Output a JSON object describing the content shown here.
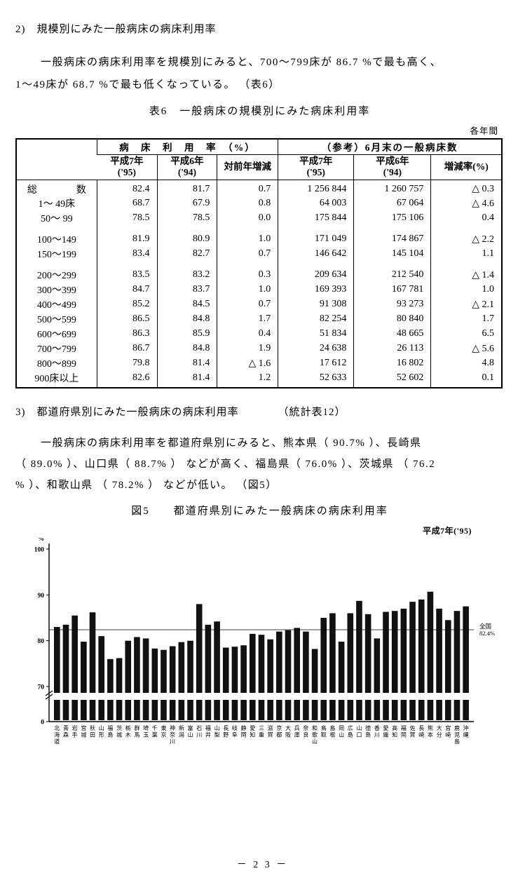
{
  "page": {
    "section2_no": "2)",
    "section2_title": "規模別にみた一般病床の病床利用率",
    "para2_line1": "一般病床の病床利用率を規模別にみると、700～799床が 86.7 %で最も高く、",
    "para2_line2": "1～49床が 68.7 %で最も低くなっている。 （表6）",
    "table_title": "表6　一般病床の規模別にみた病床利用率",
    "table_period_note": "各年間",
    "section3_no": "3)",
    "section3_title": "都道府県別にみた一般病床の病床利用率",
    "section3_ref": "（統計表12）",
    "para3_line1": "一般病床の病床利用率を都道府県別にみると、熊本県（ 90.7% ）、長崎県",
    "para3_line2": "（ 89.0% ）、山口県（ 88.7% ） などが高く、福島県（ 76.0% ）、茨城県 （ 76.2",
    "para3_line3": "% ）、和歌山県 （ 78.2% ） などが低い。 （図5）",
    "figure_title": "図5　　都道府県別にみた一般病床の病床利用率",
    "figure_year_label": "平成7年('95)",
    "page_number": "－  2 3  －"
  },
  "table": {
    "header_group_rate": "病　床　利　用　率　（%）",
    "header_group_count": "（参考）6月末の一般病床数",
    "col_headers": [
      [
        "平成7年",
        "('95)"
      ],
      [
        "平成6年",
        "('94)"
      ],
      [
        "対前年増減"
      ],
      [
        "平成7年",
        "('95)"
      ],
      [
        "平成6年",
        "('94)"
      ],
      [
        "増減率(%)"
      ]
    ],
    "rows": [
      {
        "label": "総　　　　数",
        "values": [
          "82.4",
          "81.7",
          "0.7",
          "1 256 844",
          "1 260 757",
          "△ 0.3"
        ]
      },
      {
        "label": "1～ 49床",
        "values": [
          "68.7",
          "67.9",
          "0.8",
          "64 003",
          "67 064",
          "△ 4.6"
        ]
      },
      {
        "label": "50～ 99",
        "values": [
          "78.5",
          "78.5",
          "0.0",
          "175 844",
          "175 106",
          "0.4"
        ]
      },
      {
        "label": "100～149",
        "values": [
          "81.9",
          "80.9",
          "1.0",
          "171 049",
          "174 867",
          "△ 2.2"
        ]
      },
      {
        "label": "150～199",
        "values": [
          "83.4",
          "82.7",
          "0.7",
          "146 642",
          "145 104",
          "1.1"
        ]
      },
      {
        "label": "200～299",
        "values": [
          "83.5",
          "83.2",
          "0.3",
          "209 634",
          "212 540",
          "△ 1.4"
        ]
      },
      {
        "label": "300～399",
        "values": [
          "84.7",
          "83.7",
          "1.0",
          "169 393",
          "167 781",
          "1.0"
        ]
      },
      {
        "label": "400～499",
        "values": [
          "85.2",
          "84.5",
          "0.7",
          "91 308",
          "93 273",
          "△ 2.1"
        ]
      },
      {
        "label": "500～599",
        "values": [
          "86.5",
          "84.8",
          "1.7",
          "82 254",
          "80 840",
          "1.7"
        ]
      },
      {
        "label": "600～699",
        "values": [
          "86.3",
          "85.9",
          "0.4",
          "51 834",
          "48 665",
          "6.5"
        ]
      },
      {
        "label": "700～799",
        "values": [
          "86.7",
          "84.8",
          "1.9",
          "24 638",
          "26 113",
          "△ 5.6"
        ]
      },
      {
        "label": "800～899",
        "values": [
          "79.8",
          "81.4",
          "△ 1.6",
          "17 612",
          "16 802",
          "4.8"
        ]
      },
      {
        "label": "900床以上",
        "values": [
          "82.6",
          "81.4",
          "1.2",
          "52 633",
          "52 602",
          "0.1"
        ]
      }
    ]
  },
  "chart_data": {
    "type": "bar",
    "title": "図5 都道府県別にみた一般病床の病床利用率",
    "year_label": "平成7年('95)",
    "ylabel": "%",
    "yticks": [
      0,
      70,
      80,
      90,
      100
    ],
    "ylim_display": [
      70,
      100
    ],
    "axis_break": true,
    "grid": false,
    "bar_color": "#111111",
    "reference_line": {
      "label": "全国",
      "value": 82.4
    },
    "categories": [
      "北海道",
      "青森",
      "岩手",
      "宮城",
      "秋田",
      "山形",
      "福島",
      "茨城",
      "栃木",
      "群馬",
      "埼玉",
      "千葉",
      "東京",
      "神奈川",
      "新潟",
      "富山",
      "石川",
      "福井",
      "山梨",
      "長野",
      "岐阜",
      "静岡",
      "愛知",
      "三重",
      "滋賀",
      "京都",
      "大阪",
      "兵庫",
      "奈良",
      "和歌山",
      "鳥取",
      "島根",
      "岡山",
      "広島",
      "山口",
      "徳島",
      "香川",
      "愛媛",
      "高知",
      "福岡",
      "佐賀",
      "長崎",
      "熊本",
      "大分",
      "宮崎",
      "鹿児島",
      "沖縄"
    ],
    "values": [
      83.0,
      83.5,
      85.5,
      79.8,
      86.2,
      81.0,
      76.0,
      76.2,
      80.0,
      80.8,
      80.5,
      78.3,
      78.0,
      78.8,
      79.7,
      80.0,
      88.0,
      83.5,
      84.2,
      78.5,
      78.7,
      79.0,
      81.5,
      81.3,
      80.3,
      82.0,
      82.3,
      82.8,
      82.0,
      78.2,
      85.0,
      86.0,
      79.8,
      86.0,
      88.7,
      85.8,
      80.5,
      86.3,
      86.5,
      87.0,
      88.5,
      89.0,
      90.7,
      87.0,
      84.5,
      86.5,
      87.5
    ]
  }
}
